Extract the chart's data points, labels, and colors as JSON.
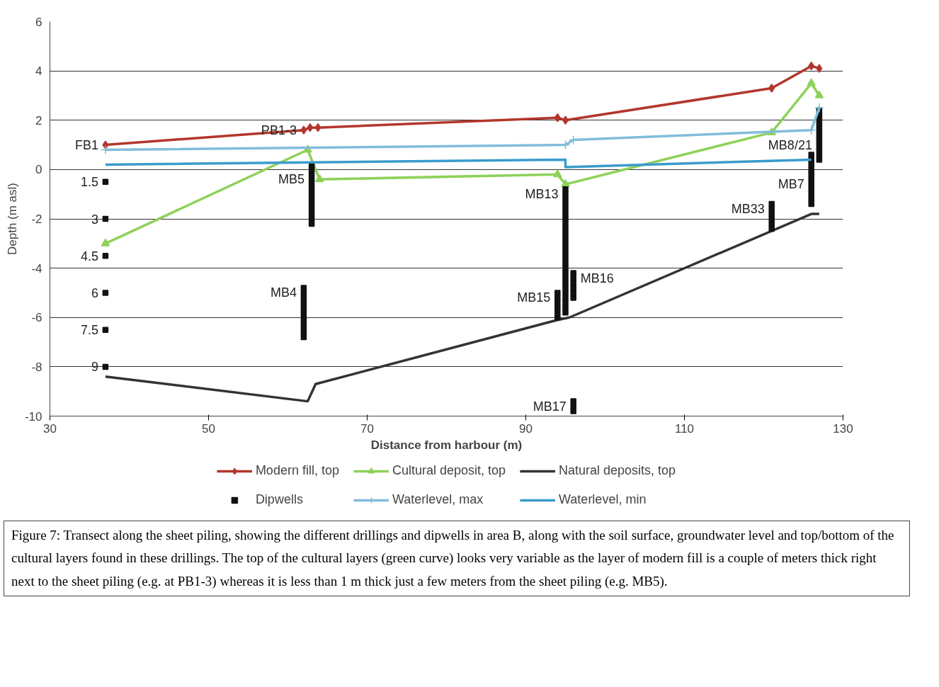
{
  "chart_data": {
    "type": "line",
    "xlabel": "Distance from harbour (m)",
    "ylabel": "Depth (m asl)",
    "xlim": [
      30,
      130
    ],
    "xticks": [
      30,
      50,
      70,
      90,
      110,
      130
    ],
    "ylim": [
      -10,
      6
    ],
    "yticks": [
      -10,
      -8,
      -6,
      -4,
      -2,
      0,
      2,
      4,
      6
    ],
    "grid": "y",
    "legend": "bottom",
    "series": [
      {
        "name": "Modern fill, top",
        "marker": "diamond",
        "color": "#b3362c",
        "x": [
          37,
          62,
          62.8,
          63.8,
          94,
          95,
          121,
          126,
          127
        ],
        "values": [
          1.0,
          1.6,
          1.7,
          1.7,
          2.1,
          2.0,
          3.3,
          4.2,
          4.1
        ]
      },
      {
        "name": "Cultural deposit, top",
        "marker": "triangle",
        "color": "#8fd15a",
        "x": [
          37,
          62.5,
          64,
          94,
          95,
          121,
          126,
          127
        ],
        "values": [
          -3.0,
          0.8,
          -0.4,
          -0.2,
          -0.6,
          1.5,
          3.5,
          3.0
        ]
      },
      {
        "name": "Natural deposits, top",
        "color": "#333333",
        "x": [
          37,
          62.5,
          63.5,
          94,
          95.5,
          126,
          127
        ],
        "values": [
          -8.4,
          -9.4,
          -8.7,
          -6.1,
          -6.0,
          -1.8,
          -1.8
        ]
      },
      {
        "name": "Dipwells",
        "type": "scatter",
        "marker": "square",
        "color": "#111111",
        "x": [
          37,
          37,
          37,
          37,
          37,
          37,
          63,
          63,
          63,
          63,
          63,
          63,
          63,
          63,
          63,
          63,
          63,
          63,
          63,
          62,
          62,
          62,
          62,
          62,
          62,
          62,
          62,
          62,
          62,
          62,
          95,
          95,
          95,
          95,
          95,
          95,
          95,
          95,
          95,
          95,
          95,
          95,
          95,
          95,
          95,
          95,
          95,
          95,
          95,
          95,
          95,
          95,
          95,
          95,
          95,
          95,
          94,
          94,
          94,
          94,
          94,
          94,
          96,
          96,
          96,
          96,
          96,
          96,
          96,
          96,
          96,
          121,
          121,
          121,
          121,
          121,
          121,
          126,
          126,
          126,
          126,
          126,
          126,
          126,
          126,
          126,
          126,
          126,
          127,
          127,
          127,
          127,
          127,
          127,
          127,
          127,
          127,
          127,
          127
        ],
        "values": [
          -0.5,
          -2,
          -3.5,
          -5,
          -6.5,
          -8,
          0.2,
          0,
          -0.2,
          -0.4,
          -0.6,
          -0.8,
          -1,
          -1.2,
          -1.4,
          -1.6,
          -1.8,
          -2,
          -2.2,
          -4.8,
          -5,
          -5.2,
          -5.4,
          -5.6,
          -5.8,
          -6,
          -6.2,
          -6.4,
          -6.6,
          -6.8,
          -0.8,
          -1,
          -1.2,
          -1.4,
          -1.6,
          -1.8,
          -2,
          -2.2,
          -2.4,
          -2.6,
          -2.8,
          -3,
          -3.2,
          -3.4,
          -3.6,
          -3.8,
          -4,
          -4.2,
          -4.4,
          -4.6,
          -4.8,
          -5,
          -5.2,
          -5.4,
          -5.6,
          -5.8,
          -5,
          -5.2,
          -5.4,
          -5.6,
          -5.8,
          -6,
          -4.2,
          -4.4,
          -4.6,
          -4.8,
          -5,
          -5.2,
          -9.4,
          -9.6,
          -9.8,
          -1.4,
          -1.6,
          -1.8,
          -2,
          -2.2,
          -2.4,
          0.6,
          0.4,
          0.2,
          0,
          -0.2,
          -0.4,
          -0.6,
          -0.8,
          -1,
          -1.2,
          -1.4,
          2.4,
          2.2,
          2,
          1.8,
          1.6,
          1.4,
          1.2,
          1,
          0.8,
          0.6,
          0.4
        ]
      },
      {
        "name": "Waterlevel, max",
        "marker": "cross",
        "color": "#80bddc",
        "x": [
          37,
          95,
          96,
          126,
          127
        ],
        "values": [
          0.8,
          1.0,
          1.2,
          1.6,
          2.5
        ]
      },
      {
        "name": "Waterlevel, min",
        "color": "#3a9ccc",
        "x": [
          37,
          95,
          95,
          126
        ],
        "values": [
          0.2,
          0.4,
          0.1,
          0.4
        ]
      }
    ],
    "annotations": [
      {
        "text": "FB1",
        "x": 37,
        "y": 1.0
      },
      {
        "text": "PB1-3",
        "x": 62,
        "y": 1.6
      },
      {
        "text": "MB5",
        "x": 63,
        "y": -0.4
      },
      {
        "text": "MB13",
        "x": 95,
        "y": -1.0
      },
      {
        "text": "MB16",
        "x": 96,
        "y": -4.4
      },
      {
        "text": "MB15",
        "x": 94,
        "y": -5.2
      },
      {
        "text": "MB4",
        "x": 62,
        "y": -5.0
      },
      {
        "text": "MB17",
        "x": 96,
        "y": -9.6
      },
      {
        "text": "MB33",
        "x": 121,
        "y": -1.6
      },
      {
        "text": "MB7",
        "x": 126,
        "y": -0.6
      },
      {
        "text": "MB8/21",
        "x": 127,
        "y": 1.0
      },
      {
        "text": "1.5",
        "x": 37,
        "y": -0.5
      },
      {
        "text": "3",
        "x": 37,
        "y": -2
      },
      {
        "text": "4.5",
        "x": 37,
        "y": -3.5
      },
      {
        "text": "6",
        "x": 37,
        "y": -5
      },
      {
        "text": "7.5",
        "x": 37,
        "y": -6.5
      },
      {
        "text": "9",
        "x": 37,
        "y": -8
      },
      "Figure 7: Transect along the sheet piling, showing the different drillings and dipwells in area B, along with the soil surface, groundwater level and top/bottom of the cultural layers found in these drillings. The top of the cultural layers (green curve) looks very variable as the layer of modern fill is a couple of meters thick right next to the sheet piling (e.g. at PB1-3) whereas it is less than 1 m thick just a few meters from the sheet piling (e.g. MB5)."
    ]
  }
}
